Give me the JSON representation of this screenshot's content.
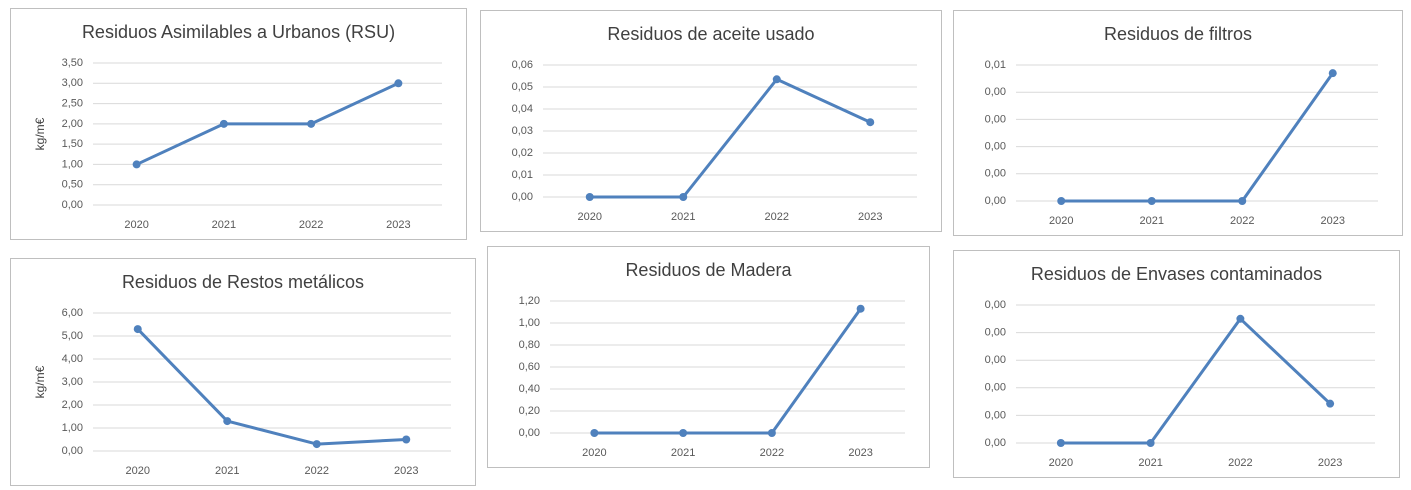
{
  "chart_data": [
    {
      "type": "line",
      "title": "Residuos Asimilables a Urbanos (RSU)",
      "y_label": "kg/m€",
      "categories": [
        "2020",
        "2021",
        "2022",
        "2023"
      ],
      "values": [
        1,
        2,
        2,
        3
      ],
      "color": "#4f81bd",
      "ylim": [
        0,
        3.5
      ],
      "yticks": [
        {
          "value": 0,
          "label": "0,00"
        },
        {
          "value": 0.5,
          "label": "0,50"
        },
        {
          "value": 1,
          "label": "1,00"
        },
        {
          "value": 1.5,
          "label": "1,50"
        },
        {
          "value": 2,
          "label": "2,00"
        },
        {
          "value": 2.5,
          "label": "2,50"
        },
        {
          "value": 3,
          "label": "3,00"
        },
        {
          "value": 3.5,
          "label": "3,50"
        }
      ],
      "grid": true
    },
    {
      "type": "line",
      "title": "Residuos de aceite usado",
      "categories": [
        "2020",
        "2021",
        "2022",
        "2023"
      ],
      "values": [
        0,
        0,
        0.0535,
        0.034
      ],
      "color": "#4f81bd",
      "ylim": [
        0,
        0.06
      ],
      "yticks": [
        {
          "value": 0,
          "label": "0,00"
        },
        {
          "value": 0.01,
          "label": "0,01"
        },
        {
          "value": 0.02,
          "label": "0,02"
        },
        {
          "value": 0.03,
          "label": "0,03"
        },
        {
          "value": 0.04,
          "label": "0,04"
        },
        {
          "value": 0.05,
          "label": "0,05"
        },
        {
          "value": 0.06,
          "label": "0,06"
        }
      ],
      "grid": true
    },
    {
      "type": "line",
      "title": "Residuos de filtros",
      "categories": [
        "2020",
        "2021",
        "2022",
        "2023"
      ],
      "values": [
        0,
        0,
        0,
        0.0047
      ],
      "color": "#4f81bd",
      "ylim": [
        0,
        0.005
      ],
      "yticks": [
        {
          "value": 0,
          "label": "0,00"
        },
        {
          "value": 0.001,
          "label": "0,00"
        },
        {
          "value": 0.002,
          "label": "0,00"
        },
        {
          "value": 0.003,
          "label": "0,00"
        },
        {
          "value": 0.004,
          "label": "0,00"
        },
        {
          "value": 0.005,
          "label": "0,01"
        }
      ],
      "grid": true
    },
    {
      "type": "line",
      "title": "Residuos de Restos metálicos",
      "y_label": "kg/m€",
      "categories": [
        "2020",
        "2021",
        "2022",
        "2023"
      ],
      "values": [
        5.3,
        1.3,
        0.3,
        0.5
      ],
      "color": "#4f81bd",
      "ylim": [
        0,
        6
      ],
      "yticks": [
        {
          "value": 0,
          "label": "0,00"
        },
        {
          "value": 1,
          "label": "1,00"
        },
        {
          "value": 2,
          "label": "2,00"
        },
        {
          "value": 3,
          "label": "3,00"
        },
        {
          "value": 4,
          "label": "4,00"
        },
        {
          "value": 5,
          "label": "5,00"
        },
        {
          "value": 6,
          "label": "6,00"
        }
      ],
      "grid": true
    },
    {
      "type": "line",
      "title": "Residuos de Madera",
      "categories": [
        "2020",
        "2021",
        "2022",
        "2023"
      ],
      "values": [
        0,
        0,
        0,
        1.13
      ],
      "color": "#4f81bd",
      "ylim": [
        0,
        1.2
      ],
      "yticks": [
        {
          "value": 0,
          "label": "0,00"
        },
        {
          "value": 0.2,
          "label": "0,20"
        },
        {
          "value": 0.4,
          "label": "0,40"
        },
        {
          "value": 0.6,
          "label": "0,60"
        },
        {
          "value": 0.8,
          "label": "0,80"
        },
        {
          "value": 1,
          "label": "1,00"
        },
        {
          "value": 1.2,
          "label": "1,20"
        }
      ],
      "grid": true
    },
    {
      "type": "line",
      "title": "Residuos de Envases contaminados",
      "categories": [
        "2020",
        "2021",
        "2022",
        "2023"
      ],
      "values": [
        0,
        0,
        0.0036,
        0.00114
      ],
      "color": "#4f81bd",
      "ylim": [
        0,
        0.004
      ],
      "yticks": [
        {
          "value": 0,
          "label": "0,00"
        },
        {
          "value": 0.0008,
          "label": "0,00"
        },
        {
          "value": 0.0016,
          "label": "0,00"
        },
        {
          "value": 0.0024,
          "label": "0,00"
        },
        {
          "value": 0.0032,
          "label": "0,00"
        },
        {
          "value": 0.004,
          "label": "0,00"
        }
      ],
      "grid": true
    }
  ]
}
